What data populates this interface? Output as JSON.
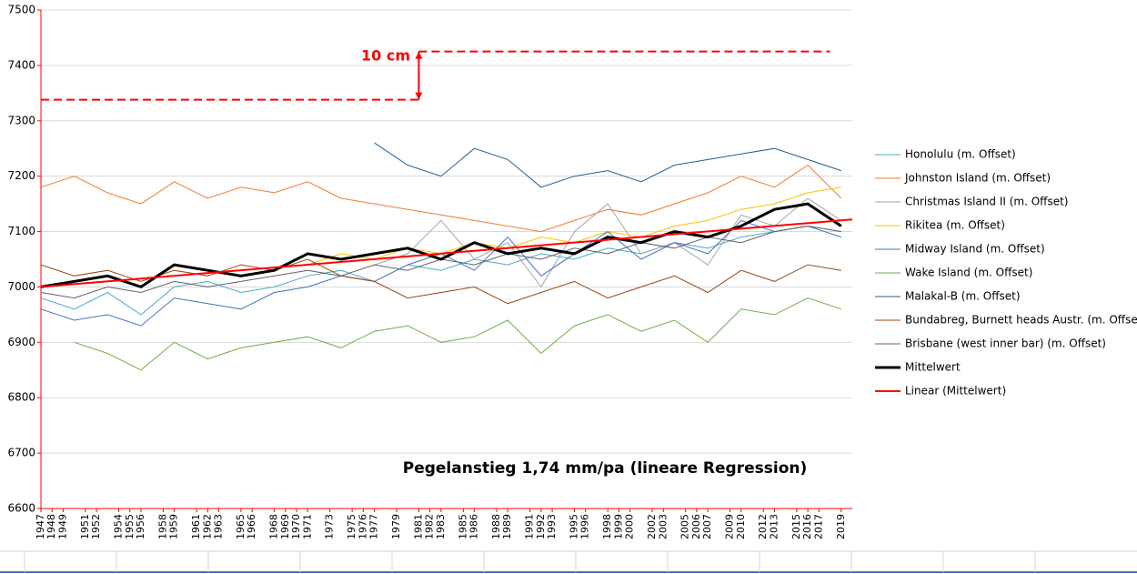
{
  "chart_data": {
    "type": "line",
    "annotations": [
      "10 cm",
      "Pegelanstieg 1,74 mm/pa (lineare Regression)"
    ],
    "ref_lines": [
      {
        "y": 7338,
        "x": [
          1947,
          1981
        ]
      },
      {
        "y": 7425,
        "x": [
          1981,
          2018
        ]
      }
    ],
    "ref_color": "#ff0000",
    "xlim": [
      1947,
      2020
    ],
    "xticks": [
      1947,
      1948,
      1949,
      1951,
      1952,
      1954,
      1955,
      1956,
      1958,
      1959,
      1961,
      1962,
      1963,
      1965,
      1966,
      1968,
      1969,
      1970,
      1971,
      1973,
      1975,
      1976,
      1977,
      1979,
      1981,
      1982,
      1983,
      1985,
      1986,
      1988,
      1989,
      1991,
      1992,
      1993,
      1995,
      1996,
      1998,
      1999,
      2000,
      2002,
      2003,
      2005,
      2006,
      2007,
      2009,
      2010,
      2012,
      2013,
      2015,
      2016,
      2017,
      2019
    ],
    "ylim": [
      6600,
      7500
    ],
    "yticks": [
      6600,
      6700,
      6800,
      6900,
      7000,
      7100,
      7200,
      7300,
      7400,
      7500
    ],
    "grid": true,
    "x": [
      1947,
      1950,
      1953,
      1956,
      1959,
      1962,
      1965,
      1968,
      1971,
      1974,
      1977,
      1980,
      1983,
      1986,
      1989,
      1992,
      1995,
      1998,
      2001,
      2004,
      2007,
      2010,
      2013,
      2016,
      2019
    ],
    "series": [
      {
        "name": "Honolulu (m. Offset)",
        "color": "#4bacc6",
        "values": [
          6980,
          6960,
          6990,
          6950,
          7000,
          7010,
          6990,
          7000,
          7020,
          7030,
          7010,
          7040,
          7030,
          7050,
          7040,
          7060,
          7050,
          7070,
          7060,
          7080,
          7070,
          7090,
          7100,
          7110,
          7100
        ]
      },
      {
        "name": "Johnston Island (m. Offset)",
        "color": "#ed7d31",
        "values": [
          7180,
          7200,
          7170,
          7150,
          7190,
          7160,
          7180,
          7170,
          7190,
          7160,
          7150,
          7140,
          7130,
          7120,
          7110,
          7100,
          7120,
          7140,
          7130,
          7150,
          7170,
          7200,
          7180,
          7220,
          7160
        ]
      },
      {
        "name": "Christmas Island II (m. Offset)",
        "color": "#a5a5a5",
        "values": [
          null,
          null,
          null,
          null,
          null,
          null,
          null,
          null,
          null,
          null,
          7040,
          7060,
          7120,
          7050,
          7080,
          7000,
          7100,
          7150,
          7060,
          7080,
          7040,
          7130,
          7110,
          7160,
          7120
        ]
      },
      {
        "name": "Rikitea (m. Offset)",
        "color": "#ffc000",
        "values": [
          null,
          null,
          null,
          null,
          null,
          null,
          null,
          null,
          7040,
          7060,
          7050,
          7070,
          7060,
          7080,
          7070,
          7090,
          7080,
          7100,
          7090,
          7110,
          7120,
          7140,
          7150,
          7170,
          7180
        ]
      },
      {
        "name": "Midway Island (m. Offset)",
        "color": "#4472c4",
        "values": [
          6960,
          6940,
          6950,
          6930,
          6980,
          6970,
          6960,
          6990,
          7000,
          7020,
          7010,
          7040,
          7060,
          7030,
          7090,
          7020,
          7060,
          7100,
          7050,
          7080,
          7060,
          7120,
          7100,
          7110,
          7090
        ]
      },
      {
        "name": "Wake Island (m. Offset)",
        "color": "#70ad47",
        "values": [
          null,
          6900,
          6880,
          6850,
          6900,
          6870,
          6890,
          6900,
          6910,
          6890,
          6920,
          6930,
          6900,
          6910,
          6940,
          6880,
          6930,
          6950,
          6920,
          6940,
          6900,
          6960,
          6950,
          6980,
          6960
        ]
      },
      {
        "name": "Malakal-B (m. Offset)",
        "color": "#255e91",
        "values": [
          null,
          null,
          null,
          null,
          null,
          null,
          null,
          null,
          null,
          null,
          7260,
          7220,
          7200,
          7250,
          7230,
          7180,
          7200,
          7210,
          7190,
          7220,
          7230,
          7240,
          7250,
          7230,
          7210
        ]
      },
      {
        "name": "Bundabreg, Burnett heads Austr. (m. Offset)",
        "color": "#9e480e",
        "values": [
          7040,
          7020,
          7030,
          7010,
          7030,
          7020,
          7040,
          7030,
          7050,
          7020,
          7010,
          6980,
          6990,
          7000,
          6970,
          6990,
          7010,
          6980,
          7000,
          7020,
          6990,
          7030,
          7010,
          7040,
          7030
        ]
      },
      {
        "name": "Brisbane (west inner bar) (m. Offset)",
        "color": "#636363",
        "values": [
          6990,
          6980,
          7000,
          6990,
          7010,
          7000,
          7010,
          7020,
          7030,
          7020,
          7040,
          7030,
          7050,
          7040,
          7060,
          7050,
          7070,
          7060,
          7080,
          7070,
          7090,
          7080,
          7100,
          7110,
          7100
        ]
      },
      {
        "name": "Mittelwert",
        "color": "#000000",
        "line_width": 3,
        "values": [
          7000,
          7010,
          7020,
          7000,
          7040,
          7030,
          7020,
          7030,
          7060,
          7050,
          7060,
          7070,
          7050,
          7080,
          7060,
          7070,
          7060,
          7090,
          7080,
          7100,
          7090,
          7110,
          7140,
          7150,
          7110
        ]
      },
      {
        "name": "Linear (Mittelwert)",
        "color": "#ff0000",
        "line_width": 2,
        "x": [
          1947,
          2020
        ],
        "values": [
          7000,
          7122
        ]
      }
    ]
  }
}
